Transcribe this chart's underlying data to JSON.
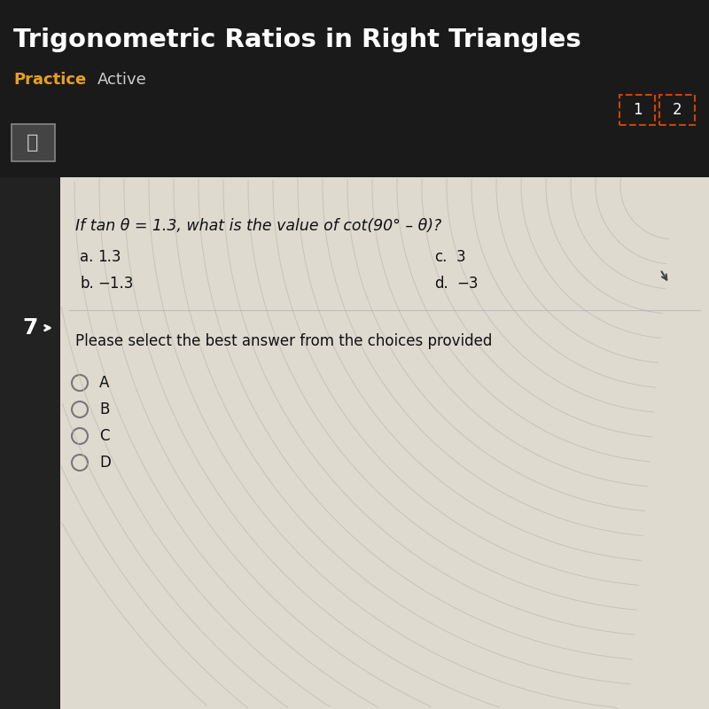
{
  "title": "Trigonometric Ratios in Right Triangles",
  "subtitle_left": "Practice",
  "subtitle_right": "Active",
  "header_bg": "#1a1a1a",
  "title_color": "#ffffff",
  "practice_color": "#e8a020",
  "active_color": "#cccccc",
  "content_bg": "#dedad0",
  "question": "If tan θ = 1.3, what is the value of cot(90° – θ)?",
  "choice_a_label": "a.",
  "choice_a_val": "1.3",
  "choice_b_label": "b.",
  "choice_b_val": "−1.3",
  "choice_c_label": "c.",
  "choice_c_val": "3",
  "choice_d_label": "d.",
  "choice_d_val": "−3",
  "prompt": "Please select the best answer from the choices provided",
  "radio_labels": [
    "A",
    "B",
    "C",
    "D"
  ],
  "nav_labels": [
    "1",
    "2"
  ],
  "nav_bg": "#1e1e1e",
  "sidebar_bg": "#222222",
  "content_text_color": "#111111",
  "radio_color": "#777777",
  "arc_color": "#c0bdb0",
  "nav_border": "#cc4400",
  "printer_bg": "#444444",
  "printer_border": "#888888"
}
